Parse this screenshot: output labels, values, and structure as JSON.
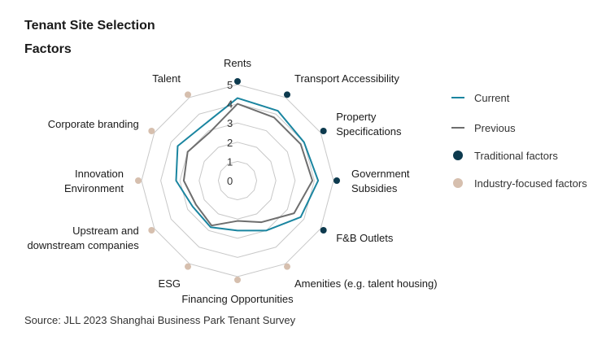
{
  "title_line1": "Tenant Site Selection",
  "title_line2": "Factors",
  "source": "Source: JLL 2023 Shanghai Business Park Tenant  Survey",
  "colors": {
    "current": "#1a85a0",
    "previous": "#6e6e6e",
    "traditional": "#0d3a4e",
    "industry": "#d6bfae",
    "grid": "#c8c8c8"
  },
  "legend": [
    {
      "label": "Current",
      "kind": "line",
      "color": "#1a85a0"
    },
    {
      "label": "Previous",
      "kind": "line",
      "color": "#6e6e6e"
    },
    {
      "label": "Traditional factors",
      "kind": "dot",
      "color": "#0d3a4e"
    },
    {
      "label": "Industry-focused factors",
      "kind": "dot",
      "color": "#d6bfae"
    }
  ],
  "chart_data": {
    "type": "radar",
    "title": "Tenant Site Selection Factors",
    "rlim": [
      0,
      5
    ],
    "ticks": [
      0,
      1,
      2,
      3,
      4,
      5
    ],
    "grid": true,
    "legend_position": "right",
    "categories": [
      {
        "lines": [
          "Rents"
        ],
        "group": "traditional"
      },
      {
        "lines": [
          "Transport Accessibility"
        ],
        "group": "traditional"
      },
      {
        "lines": [
          "Property",
          "Specifications"
        ],
        "group": "traditional"
      },
      {
        "lines": [
          "Government",
          "Subsidies"
        ],
        "group": "traditional"
      },
      {
        "lines": [
          "F&B Outlets"
        ],
        "group": "traditional"
      },
      {
        "lines": [
          "Amenities (e.g. talent housing)"
        ],
        "group": "industry"
      },
      {
        "lines": [
          "Financing Opportunities"
        ],
        "group": "industry"
      },
      {
        "lines": [
          "ESG"
        ],
        "group": "industry"
      },
      {
        "lines": [
          "Upstream and",
          "downstream companies"
        ],
        "group": "industry"
      },
      {
        "lines": [
          "Innovation",
          "Environment"
        ],
        "group": "industry"
      },
      {
        "lines": [
          "Corporate branding"
        ],
        "group": "industry"
      },
      {
        "lines": [
          "Talent"
        ],
        "group": "industry"
      }
    ],
    "series": [
      {
        "name": "Current",
        "values": [
          4.3,
          4.2,
          4.0,
          4.2,
          3.8,
          3.0,
          2.6,
          2.8,
          2.7,
          3.2,
          3.6,
          3.4
        ]
      },
      {
        "name": "Previous",
        "values": [
          4.0,
          3.8,
          3.8,
          3.9,
          3.4,
          2.5,
          2.1,
          2.7,
          2.5,
          2.8,
          3.0,
          2.9
        ]
      }
    ]
  }
}
